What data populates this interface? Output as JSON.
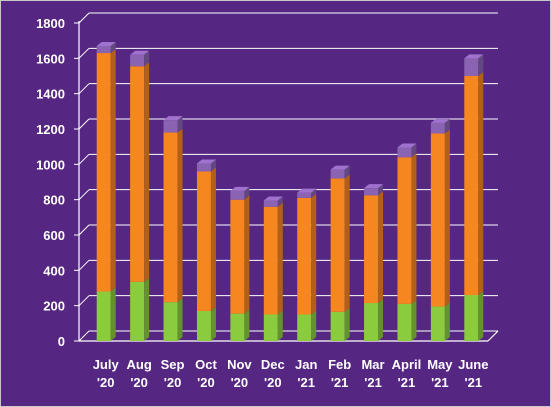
{
  "chart_data": {
    "type": "bar",
    "stacked": true,
    "title": "",
    "xlabel": "",
    "ylabel": "",
    "categories": [
      [
        "July",
        "'20"
      ],
      [
        "Aug",
        "'20"
      ],
      [
        "Sep",
        "'20"
      ],
      [
        "Oct",
        "'20"
      ],
      [
        "Nov",
        "'20"
      ],
      [
        "Dec",
        "'20"
      ],
      [
        "Jan",
        "'21"
      ],
      [
        "Feb",
        "'21"
      ],
      [
        "Mar",
        "'21"
      ],
      [
        "April",
        "'21"
      ],
      [
        "May",
        "'21"
      ],
      [
        "June",
        "'21"
      ]
    ],
    "series": [
      {
        "color": "#8bcb3e",
        "values": [
          280,
          335,
          220,
          170,
          155,
          150,
          150,
          165,
          215,
          210,
          195,
          260
        ]
      },
      {
        "color": "#f6861f",
        "values": [
          1350,
          1220,
          960,
          790,
          645,
          610,
          660,
          755,
          610,
          830,
          980,
          1240
        ]
      },
      {
        "color": "#8a63b3",
        "values": [
          40,
          65,
          70,
          45,
          50,
          35,
          30,
          50,
          40,
          55,
          60,
          100
        ]
      }
    ],
    "ylim": [
      0,
      1800
    ],
    "yticks": [
      0,
      200,
      400,
      600,
      800,
      1000,
      1200,
      1400,
      1600,
      1800
    ],
    "grid": true,
    "legend": "none",
    "colors": {
      "background": "#562683",
      "grid": "#ffffff",
      "text": "#ffffff"
    }
  }
}
